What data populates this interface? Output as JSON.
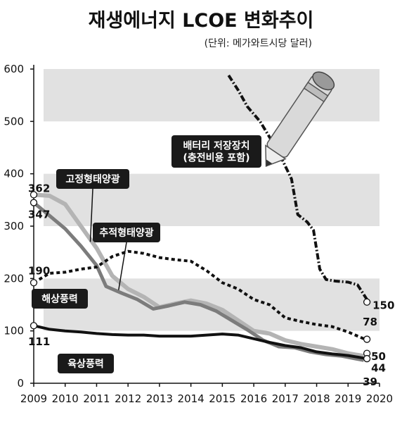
{
  "chart_data": {
    "type": "line",
    "title": "재생에너지 LCOE 변화추이",
    "subtitle": "(단위: 메가와트시당 달러)",
    "ylim": [
      0,
      600
    ],
    "yticks": [
      0,
      100,
      200,
      300,
      400,
      500,
      600
    ],
    "xlim": [
      2009,
      2020
    ],
    "xticks": [
      2009,
      2010,
      2011,
      2012,
      2013,
      2014,
      2015,
      2016,
      2017,
      2018,
      2019,
      2020
    ],
    "grid": "bands",
    "series": [
      {
        "name": "배터리 저장장치\n(충전비용 포함)",
        "color": "#111111",
        "style": "dash-dot",
        "points": [
          [
            2015.2,
            588
          ],
          [
            2015.5,
            560
          ],
          [
            2015.8,
            528
          ],
          [
            2016.2,
            500
          ],
          [
            2016.5,
            470
          ],
          [
            2016.8,
            440
          ],
          [
            2017.2,
            390
          ],
          [
            2017.4,
            322
          ],
          [
            2017.7,
            308
          ],
          [
            2017.9,
            292
          ],
          [
            2018.1,
            218
          ],
          [
            2018.3,
            198
          ],
          [
            2018.6,
            195
          ],
          [
            2019.0,
            193
          ],
          [
            2019.3,
            188
          ],
          [
            2019.6,
            160
          ]
        ],
        "end_label": "150"
      },
      {
        "name": "고정형태양광",
        "color": "#b4b4b4",
        "style": "solid",
        "points": [
          [
            2009,
            360
          ],
          [
            2009.5,
            358
          ],
          [
            2010.0,
            342
          ],
          [
            2010.5,
            300
          ],
          [
            2011.0,
            258
          ],
          [
            2011.5,
            205
          ],
          [
            2012.0,
            180
          ],
          [
            2012.5,
            165
          ],
          [
            2013.0,
            145
          ],
          [
            2013.5,
            152
          ],
          [
            2014.0,
            158
          ],
          [
            2014.5,
            152
          ],
          [
            2015.0,
            140
          ],
          [
            2015.5,
            120
          ],
          [
            2016.0,
            100
          ],
          [
            2016.5,
            95
          ],
          [
            2017.0,
            82
          ],
          [
            2017.5,
            75
          ],
          [
            2018.0,
            70
          ],
          [
            2018.5,
            65
          ],
          [
            2019.0,
            57
          ],
          [
            2019.5,
            52
          ]
        ],
        "start_label": "362",
        "end_label": "44"
      },
      {
        "name": "추적형태양광",
        "color": "#7c7c7c",
        "style": "solid",
        "points": [
          [
            2009,
            345
          ],
          [
            2009.5,
            320
          ],
          [
            2010.0,
            295
          ],
          [
            2010.5,
            262
          ],
          [
            2011.0,
            225
          ],
          [
            2011.3,
            185
          ],
          [
            2011.8,
            172
          ],
          [
            2012.3,
            160
          ],
          [
            2012.8,
            142
          ],
          [
            2013.3,
            148
          ],
          [
            2013.8,
            155
          ],
          [
            2014.3,
            150
          ],
          [
            2014.8,
            138
          ],
          [
            2015.3,
            120
          ],
          [
            2015.8,
            102
          ],
          [
            2016.3,
            82
          ],
          [
            2016.8,
            70
          ],
          [
            2017.3,
            68
          ],
          [
            2017.8,
            60
          ],
          [
            2018.3,
            55
          ],
          [
            2018.8,
            52
          ],
          [
            2019.5,
            44
          ]
        ],
        "start_label": "347",
        "end_label": "39"
      },
      {
        "name": "해상풍력",
        "color": "#111111",
        "style": "dotted",
        "points": [
          [
            2009,
            192
          ],
          [
            2009.5,
            210
          ],
          [
            2010.0,
            212
          ],
          [
            2010.5,
            218
          ],
          [
            2011.0,
            222
          ],
          [
            2011.5,
            242
          ],
          [
            2012.0,
            252
          ],
          [
            2012.5,
            248
          ],
          [
            2013.0,
            240
          ],
          [
            2013.5,
            236
          ],
          [
            2014.0,
            233
          ],
          [
            2014.5,
            215
          ],
          [
            2015.0,
            192
          ],
          [
            2015.5,
            180
          ],
          [
            2016.0,
            160
          ],
          [
            2016.5,
            150
          ],
          [
            2017.0,
            125
          ],
          [
            2017.5,
            118
          ],
          [
            2018.0,
            112
          ],
          [
            2018.5,
            108
          ],
          [
            2019.0,
            98
          ],
          [
            2019.5,
            85
          ]
        ],
        "start_label": "190",
        "end_label": "78"
      },
      {
        "name": "육상풍력",
        "color": "#111111",
        "style": "solid",
        "points": [
          [
            2009,
            110
          ],
          [
            2009.5,
            103
          ],
          [
            2010.0,
            100
          ],
          [
            2010.5,
            98
          ],
          [
            2011.0,
            95
          ],
          [
            2011.5,
            93
          ],
          [
            2012.0,
            92
          ],
          [
            2012.5,
            92
          ],
          [
            2013.0,
            90
          ],
          [
            2013.5,
            90
          ],
          [
            2014.0,
            90
          ],
          [
            2014.5,
            92
          ],
          [
            2015.0,
            94
          ],
          [
            2015.5,
            92
          ],
          [
            2016.0,
            85
          ],
          [
            2016.5,
            78
          ],
          [
            2017.0,
            72
          ],
          [
            2017.5,
            68
          ],
          [
            2018.0,
            60
          ],
          [
            2018.5,
            56
          ],
          [
            2019.0,
            53
          ],
          [
            2019.5,
            48
          ]
        ],
        "start_label": "111",
        "end_label": "50"
      }
    ]
  }
}
